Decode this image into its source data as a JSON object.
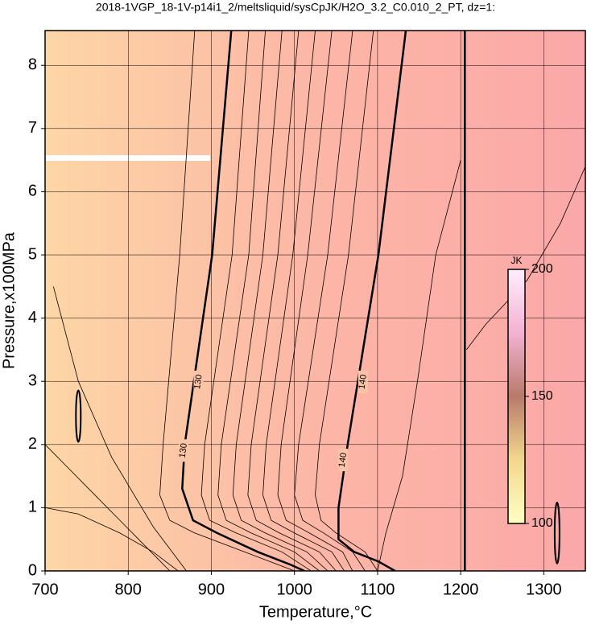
{
  "chart_data": {
    "type": "contour",
    "title": "2018-1VGP_18-1V-p14i1_2/meltsliquid/sysCpJK/H2O_3.2_C0.010_2_PT, dz=1:",
    "x_label": "Temperature,°C",
    "y_label": "Pressure,x100MPa",
    "xlim": [
      700,
      1350
    ],
    "ylim": [
      0,
      8.55
    ],
    "xticks": [
      700,
      800,
      900,
      1000,
      1100,
      1200,
      1300
    ],
    "yticks": [
      0,
      1,
      2,
      3,
      4,
      5,
      6,
      7,
      8
    ],
    "grid": true,
    "background_colors": [
      "#fdd6a6",
      "#fcb6a6",
      "#fba8a8"
    ],
    "contours": [
      {
        "level": 130,
        "bold": true,
        "x": [
          924,
          901,
          868,
          865,
          878,
          907,
          956,
          995,
          1012
        ],
        "y": [
          8.55,
          5,
          2,
          1.3,
          0.8,
          0.6,
          0.3,
          0.1,
          0
        ]
      },
      {
        "level": 140,
        "bold": true,
        "x": [
          1134,
          1101,
          1064,
          1053,
          1053,
          1072,
          1101,
          1121
        ],
        "y": [
          8.55,
          5,
          2,
          1,
          0.5,
          0.3,
          0.15,
          0
        ]
      },
      {
        "bold": true,
        "x": [
          1205,
          1205
        ],
        "y": [
          0,
          8.55
        ]
      },
      {
        "x": [
          880,
          862,
          842,
          838,
          850,
          880,
          940,
          1000
        ],
        "y": [
          8.55,
          5,
          2,
          1.2,
          0.8,
          0.6,
          0.3,
          0
        ]
      },
      {
        "x": [
          945,
          925,
          892,
          888,
          898,
          930,
          985,
          1020
        ],
        "y": [
          8.55,
          5,
          2,
          1.2,
          0.8,
          0.6,
          0.3,
          0
        ]
      },
      {
        "x": [
          965,
          945,
          912,
          908,
          918,
          948,
          1000,
          1030
        ],
        "y": [
          8.55,
          5,
          2,
          1.2,
          0.8,
          0.6,
          0.3,
          0
        ]
      },
      {
        "x": [
          985,
          962,
          930,
          926,
          936,
          965,
          1015,
          1040
        ],
        "y": [
          8.55,
          5,
          2,
          1.2,
          0.8,
          0.6,
          0.3,
          0
        ]
      },
      {
        "x": [
          1005,
          980,
          948,
          944,
          954,
          982,
          1030,
          1050
        ],
        "y": [
          8.55,
          5,
          2,
          1.2,
          0.8,
          0.6,
          0.3,
          0
        ]
      },
      {
        "x": [
          1025,
          998,
          966,
          962,
          972,
          1000,
          1045,
          1060
        ],
        "y": [
          8.55,
          5,
          2,
          1.2,
          0.8,
          0.6,
          0.3,
          0
        ]
      },
      {
        "x": [
          1045,
          1016,
          984,
          980,
          990,
          1018,
          1058,
          1070
        ],
        "y": [
          8.55,
          5,
          2,
          1.2,
          0.8,
          0.6,
          0.3,
          0
        ]
      },
      {
        "x": [
          1070,
          1040,
          1005,
          1000,
          1010,
          1035,
          1070,
          1085
        ],
        "y": [
          8.55,
          5,
          2,
          1.2,
          0.8,
          0.6,
          0.3,
          0
        ]
      },
      {
        "x": [
          1095,
          1065,
          1030,
          1025,
          1032,
          1050,
          1085,
          1100
        ],
        "y": [
          8.55,
          5,
          2,
          1.2,
          0.8,
          0.6,
          0.3,
          0
        ]
      },
      {
        "x": [
          1200,
          1170,
          1148,
          1130,
          1110,
          1100
        ],
        "y": [
          6.5,
          5.0,
          3.0,
          1.5,
          0.6,
          0
        ]
      },
      {
        "x": [
          1350,
          1320,
          1280,
          1230,
          1207
        ],
        "y": [
          6.4,
          5.5,
          4.6,
          3.9,
          3.5
        ]
      },
      {
        "x": [
          700,
          730,
          760,
          790,
          820,
          850
        ],
        "y": [
          2.0,
          1.6,
          1.2,
          0.8,
          0.4,
          0
        ]
      },
      {
        "x": [
          710,
          740,
          780,
          830,
          870
        ],
        "y": [
          4.5,
          3.0,
          1.8,
          0.7,
          0
        ]
      },
      {
        "x": [
          700,
          740,
          790,
          830,
          860
        ],
        "y": [
          1.0,
          0.9,
          0.6,
          0.3,
          0
        ]
      }
    ],
    "colorbar": {
      "label": "JK",
      "lim": [
        100,
        200
      ],
      "ticks": [
        100,
        150,
        200
      ],
      "colors": [
        "#ffffc4",
        "#f2d88e",
        "#b87a6a",
        "#f2b2d2",
        "#ffeeff"
      ]
    }
  }
}
